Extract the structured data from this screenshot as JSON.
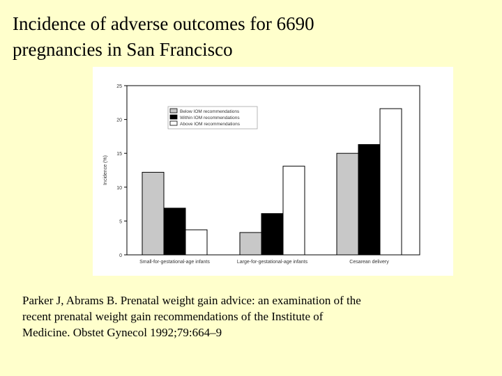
{
  "slide": {
    "title_lines": [
      "Incidence of adverse outcomes for 6690",
      "pregnancies in San Francisco"
    ],
    "citation_lines": [
      "Parker J, Abrams B. Prenatal weight gain advice: an examination of the",
      "recent prenatal weight gain recommendations of the Institute of",
      "Medicine. Obstet Gynecol 1992;79:664–9"
    ]
  },
  "chart_data": {
    "type": "bar",
    "title": "",
    "xlabel": "",
    "ylabel": "Incidence (%)",
    "ylim": [
      0,
      25
    ],
    "yticks": [
      0,
      5,
      10,
      15,
      20,
      25
    ],
    "grid": false,
    "legend_position": "top-left",
    "categories": [
      "Small-for-gestational-age infants",
      "Large-for-gestational-age infants",
      "Cesarean delivery"
    ],
    "series": [
      {
        "name": "Below IOM recommendations",
        "values": [
          12.2,
          3.3,
          15.0
        ],
        "color": "#c8c8c8"
      },
      {
        "name": "Within IOM recommendations",
        "values": [
          6.9,
          6.1,
          16.3
        ],
        "color": "#000000"
      },
      {
        "name": "Above IOM recommendations",
        "values": [
          3.7,
          13.1,
          21.6
        ],
        "color": "#ffffff"
      }
    ]
  }
}
